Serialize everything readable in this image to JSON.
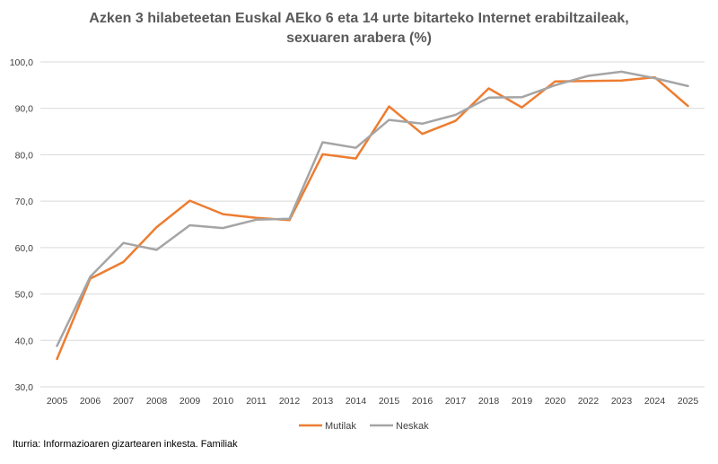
{
  "chart_data": {
    "type": "line",
    "title_lines": [
      "Azken 3 hilabeteetan Euskal AEko 6 eta 14 urte bitarteko Internet erabiltzaileak,",
      "sexuaren arabera (%)"
    ],
    "categories": [
      "2005",
      "2006",
      "2007",
      "2008",
      "2009",
      "2010",
      "2011",
      "2012",
      "2013",
      "2014",
      "2015",
      "2016",
      "2017",
      "2018",
      "2019",
      "2020",
      "2022",
      "2023",
      "2024",
      "2025"
    ],
    "ylim": [
      30,
      100
    ],
    "yticks": [
      "30,0",
      "40,0",
      "50,0",
      "60,0",
      "70,0",
      "80,0",
      "90,0",
      "100,0"
    ],
    "ytick_values": [
      30,
      40,
      50,
      60,
      70,
      80,
      90,
      100
    ],
    "grid": true,
    "legend_position": "bottom",
    "series": [
      {
        "name": "Mutilak",
        "color": "#ED7D31",
        "values": [
          36.0,
          53.3,
          56.9,
          64.4,
          70.1,
          67.2,
          66.4,
          65.9,
          80.1,
          79.2,
          90.4,
          84.5,
          87.3,
          94.3,
          90.2,
          95.8,
          95.9,
          96.0,
          96.7,
          90.5
        ]
      },
      {
        "name": "Neskak",
        "color": "#A5A5A5",
        "values": [
          38.8,
          53.7,
          61.0,
          59.5,
          64.8,
          64.2,
          66.0,
          66.2,
          82.7,
          81.5,
          87.5,
          86.7,
          88.6,
          92.3,
          92.4,
          95.0,
          97.0,
          97.9,
          96.5,
          94.8
        ]
      }
    ],
    "source": "Iturria: Informazioaren gizartearen inkesta. Familiak"
  }
}
